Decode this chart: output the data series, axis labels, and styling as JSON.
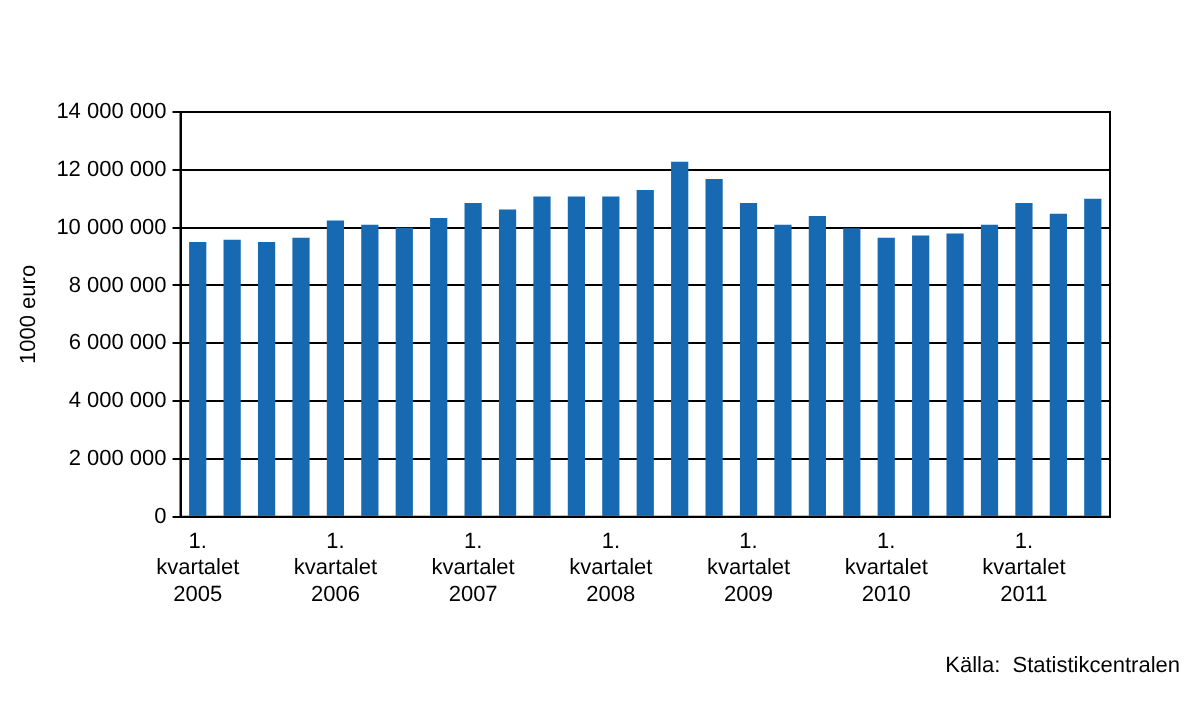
{
  "chart_data": {
    "type": "bar",
    "ylabel": "1000 euro",
    "categories": [
      "1. kvartalet 2005",
      null,
      null,
      null,
      "1. kvartalet 2006",
      null,
      null,
      null,
      "1. kvartalet 2007",
      null,
      null,
      null,
      "1. kvartalet 2008",
      null,
      null,
      null,
      "1. kvartalet 2009",
      null,
      null,
      null,
      "1. kvartalet 2010",
      null,
      null,
      null,
      "1. kvartalet 2011",
      null,
      null
    ],
    "values": [
      9500000,
      9580000,
      9500000,
      9650000,
      10250000,
      10100000,
      10000000,
      10330000,
      10850000,
      10630000,
      11080000,
      11080000,
      11080000,
      11300000,
      12280000,
      11680000,
      10850000,
      10100000,
      10400000,
      9980000,
      9650000,
      9730000,
      9800000,
      10100000,
      10850000,
      10480000,
      11000000
    ],
    "color": "#1769b2",
    "ylim": [
      0,
      14000000
    ],
    "yticks": [
      {
        "value": 0,
        "label": "0"
      },
      {
        "value": 2000000,
        "label": "2 000 000"
      },
      {
        "value": 4000000,
        "label": "4 000 000"
      },
      {
        "value": 6000000,
        "label": "6 000 000"
      },
      {
        "value": 8000000,
        "label": "8 000 000"
      },
      {
        "value": 10000000,
        "label": "10 000 000"
      },
      {
        "value": 12000000,
        "label": "12 000 000"
      },
      {
        "value": 14000000,
        "label": "14 000 000"
      }
    ],
    "grid": "y",
    "annotations": [
      "Källa:  Statistikcentralen"
    ]
  }
}
